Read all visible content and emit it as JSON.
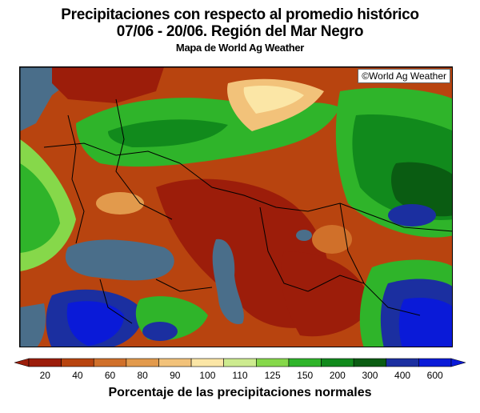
{
  "header": {
    "title_line1": "Precipitaciones con respecto al promedio histórico",
    "title_line2": "07/06 - 20/06. Región del Mar Negro",
    "subtitle": "Mapa de World Ag Weather"
  },
  "map": {
    "credit": "©World Ag Weather",
    "water_color": "#4a6e8a"
  },
  "legend": {
    "caption": "Porcentaje de las precipitaciones normales",
    "bins": [
      {
        "label": "20",
        "color": "#9c1d0a"
      },
      {
        "label": "40",
        "color": "#b8440f"
      },
      {
        "label": "60",
        "color": "#d0702a"
      },
      {
        "label": "80",
        "color": "#e29a4c"
      },
      {
        "label": "90",
        "color": "#f2c27a"
      },
      {
        "label": "100",
        "color": "#fbe6a6"
      },
      {
        "label": "110",
        "color": "#cdeb8f"
      },
      {
        "label": "125",
        "color": "#86d84a"
      },
      {
        "label": "150",
        "color": "#2fb42a"
      },
      {
        "label": "200",
        "color": "#118a1c"
      },
      {
        "label": "300",
        "color": "#0a5c12"
      },
      {
        "label": "400",
        "color": "#1b2fa0"
      },
      {
        "label": "600",
        "color": "#0a1ad8"
      }
    ]
  }
}
